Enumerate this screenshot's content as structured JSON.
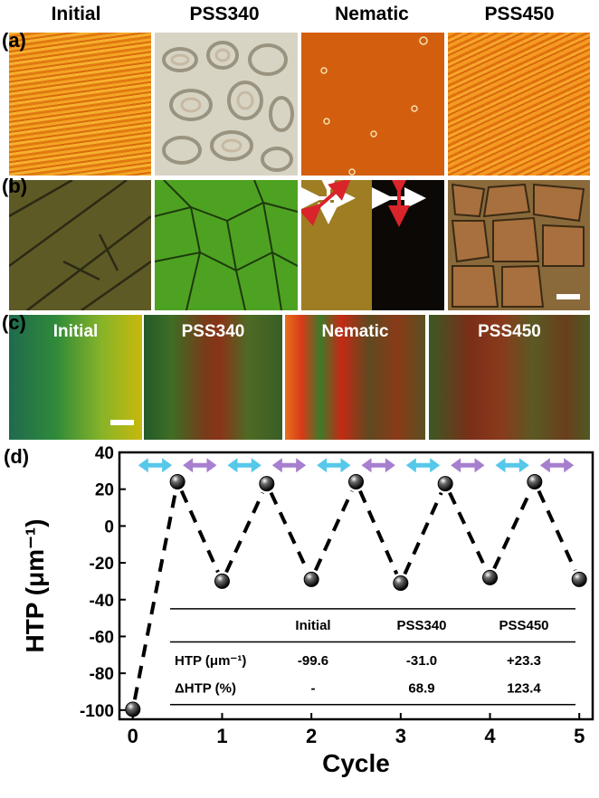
{
  "columns": [
    "Initial",
    "PSS340",
    "Nematic",
    "PSS450"
  ],
  "panels": {
    "a": "(a)",
    "b": "(b)",
    "c": "(c)",
    "d": "(d)"
  },
  "strip_titles": [
    "Initial",
    "PSS340",
    "Nematic",
    "PSS450"
  ],
  "colors": {
    "texture_orange": "#e8901a",
    "texture_green": "#4a9a1e",
    "arrow_cyan": "#56c8ea",
    "arrow_purple": "#a77fcf",
    "polarizer_red": "#d8242a"
  },
  "chart_data": {
    "type": "line",
    "xlabel": "Cycle",
    "ylabel": "HTP (μm⁻¹)",
    "xlim": [
      -0.15,
      5.15
    ],
    "ylim": [
      -105,
      40
    ],
    "xticks": [
      0,
      1,
      2,
      3,
      4,
      5
    ],
    "yticks": [
      40,
      20,
      0,
      -20,
      -40,
      -60,
      -80,
      -100
    ],
    "series": [
      {
        "x": [
          0,
          0.5,
          1,
          1.5,
          2,
          2.5,
          3,
          3.5,
          4,
          4.5,
          5
        ],
        "y": [
          -99.6,
          24,
          -30,
          23,
          -29,
          24,
          -31,
          23,
          -28,
          24,
          -29
        ]
      }
    ],
    "state_arrows": [
      "cyan",
      "purple",
      "cyan",
      "purple",
      "cyan",
      "purple",
      "cyan",
      "purple",
      "cyan",
      "purple"
    ],
    "table": {
      "headers": [
        "",
        "Initial",
        "PSS340",
        "PSS450"
      ],
      "rows": [
        [
          "HTP (μm⁻¹)",
          "-99.6",
          "-31.0",
          "+23.3"
        ],
        [
          "ΔHTP (%)",
          "-",
          "68.9",
          "123.4"
        ]
      ]
    }
  }
}
